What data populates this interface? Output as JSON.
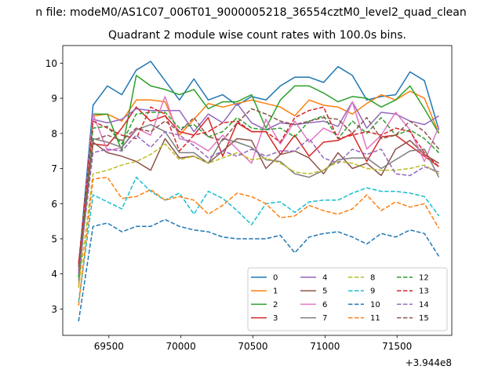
{
  "suptitle": "n file: modeM0/AS1C07_006T01_9000005218_36554cztM0_level2_quad_clean",
  "chart_data": {
    "type": "line",
    "title": "Quadrant 2 module wise count rates with 100.0s bins.",
    "xlabel": "",
    "ylabel": "",
    "x_offset_label": "+3.944e8",
    "x_offset": 394400000,
    "xlim": [
      69180,
      71880
    ],
    "ylim": [
      2.25,
      10.5
    ],
    "xticks": [
      69500,
      70000,
      70500,
      71000,
      71500
    ],
    "xtick_labels": [
      "69500",
      "70000",
      "70500",
      "71000",
      "71500"
    ],
    "yticks": [
      3,
      4,
      5,
      6,
      7,
      8,
      9,
      10
    ],
    "ytick_labels": [
      "3",
      "4",
      "5",
      "6",
      "7",
      "8",
      "9",
      "10"
    ],
    "grid": false,
    "legend_position": "lower-right",
    "x": [
      69290,
      69390,
      69490,
      69590,
      69690,
      69790,
      69890,
      69990,
      70090,
      70190,
      70290,
      70390,
      70490,
      70590,
      70690,
      70790,
      70890,
      70990,
      71090,
      71190,
      71290,
      71390,
      71490,
      71590,
      71690,
      71790
    ],
    "series": [
      {
        "name": "0",
        "color": "#1f77b4",
        "dash": "solid",
        "values": [
          4.2,
          8.8,
          9.35,
          9.1,
          9.8,
          10.05,
          9.5,
          8.95,
          9.55,
          8.95,
          9.1,
          8.8,
          9.05,
          8.95,
          9.35,
          9.6,
          9.6,
          9.45,
          9.9,
          9.65,
          8.95,
          9.05,
          9.1,
          9.75,
          9.5,
          8.1
        ]
      },
      {
        "name": "1",
        "color": "#ff7f0e",
        "dash": "solid",
        "values": [
          3.6,
          8.5,
          8.55,
          8.35,
          8.95,
          8.95,
          8.9,
          7.95,
          8.4,
          8.85,
          8.75,
          8.85,
          8.95,
          8.85,
          8.75,
          8.5,
          8.95,
          8.8,
          8.75,
          8.55,
          8.85,
          9.1,
          8.95,
          9.2,
          9.0,
          8.0
        ]
      },
      {
        "name": "2",
        "color": "#2ca02c",
        "dash": "solid",
        "values": [
          3.9,
          8.55,
          8.55,
          7.5,
          9.65,
          9.35,
          9.25,
          9.1,
          9.25,
          8.7,
          8.9,
          8.9,
          9.1,
          8.15,
          8.95,
          9.35,
          9.35,
          9.15,
          8.9,
          9.05,
          9.0,
          8.75,
          8.95,
          9.35,
          8.7,
          8.0
        ]
      },
      {
        "name": "3",
        "color": "#d62728",
        "dash": "solid",
        "values": [
          4.3,
          7.7,
          7.65,
          8.15,
          8.75,
          8.35,
          8.5,
          8.05,
          7.95,
          8.45,
          7.35,
          8.3,
          8.05,
          8.05,
          7.4,
          7.95,
          7.35,
          7.75,
          7.8,
          8.0,
          7.2,
          7.9,
          7.95,
          7.65,
          7.35,
          7.05
        ]
      },
      {
        "name": "4",
        "color": "#9467bd",
        "dash": "solid",
        "values": [
          4.0,
          8.4,
          8.3,
          8.4,
          8.7,
          8.65,
          8.65,
          8.65,
          8.05,
          8.55,
          8.3,
          8.85,
          8.3,
          8.1,
          8.3,
          8.25,
          8.3,
          8.35,
          8.2,
          8.9,
          8.15,
          8.6,
          8.55,
          8.35,
          8.25,
          8.5
        ]
      },
      {
        "name": "5",
        "color": "#8c564b",
        "dash": "solid",
        "values": [
          4.1,
          7.75,
          7.45,
          7.35,
          7.2,
          6.95,
          7.85,
          7.3,
          7.35,
          7.15,
          7.5,
          7.85,
          7.8,
          7.0,
          7.4,
          7.5,
          7.3,
          6.85,
          7.45,
          7.0,
          7.15,
          6.8,
          7.55,
          7.8,
          7.4,
          7.15
        ]
      },
      {
        "name": "6",
        "color": "#e377c2",
        "dash": "solid",
        "values": [
          4.0,
          8.55,
          7.5,
          7.6,
          8.15,
          7.95,
          9.05,
          7.85,
          7.75,
          7.5,
          7.95,
          7.55,
          7.15,
          8.4,
          7.7,
          8.35,
          7.75,
          8.15,
          7.95,
          8.9,
          7.55,
          7.95,
          8.6,
          8.1,
          7.2,
          8.2
        ]
      },
      {
        "name": "7",
        "color": "#7f7f7f",
        "dash": "solid",
        "values": [
          3.8,
          7.85,
          7.75,
          7.6,
          8.1,
          8.25,
          8.05,
          7.45,
          7.45,
          7.15,
          7.85,
          7.75,
          7.6,
          7.25,
          7.2,
          6.85,
          6.75,
          6.95,
          7.25,
          7.3,
          7.3,
          7.0,
          7.25,
          7.5,
          7.55,
          6.75
        ]
      },
      {
        "name": "8",
        "color": "#bcbd22",
        "dash": "dashed",
        "values": [
          3.6,
          6.85,
          6.95,
          7.1,
          7.2,
          7.4,
          7.7,
          7.25,
          7.35,
          7.15,
          7.3,
          7.45,
          7.25,
          7.3,
          7.15,
          6.9,
          6.85,
          6.95,
          7.2,
          7.15,
          7.0,
          6.95,
          6.95,
          7.0,
          7.1,
          6.85
        ]
      },
      {
        "name": "9",
        "color": "#17becf",
        "dash": "dashed",
        "values": [
          3.2,
          6.25,
          6.05,
          5.85,
          6.75,
          6.35,
          6.1,
          6.3,
          5.7,
          6.35,
          6.15,
          5.8,
          5.4,
          6.0,
          6.05,
          5.75,
          6.05,
          6.1,
          6.1,
          6.3,
          6.45,
          6.35,
          6.35,
          6.3,
          6.2,
          5.65
        ]
      },
      {
        "name": "10",
        "color": "#1f77b4",
        "dash": "dashed",
        "values": [
          2.65,
          5.35,
          5.45,
          5.2,
          5.35,
          5.35,
          5.55,
          5.35,
          5.25,
          5.2,
          5.05,
          5.0,
          5.0,
          5.0,
          5.1,
          4.6,
          5.05,
          5.15,
          5.2,
          5.05,
          4.85,
          5.15,
          5.05,
          5.25,
          5.15,
          4.5
        ]
      },
      {
        "name": "11",
        "color": "#ff7f0e",
        "dash": "dashed",
        "values": [
          3.1,
          6.7,
          6.75,
          6.15,
          6.2,
          6.4,
          6.1,
          6.2,
          6.1,
          5.7,
          5.95,
          6.3,
          6.2,
          6.0,
          5.6,
          5.65,
          5.95,
          5.8,
          5.7,
          5.85,
          6.25,
          5.8,
          6.05,
          5.9,
          6.0,
          5.3
        ]
      },
      {
        "name": "12",
        "color": "#2ca02c",
        "dash": "dashed",
        "values": [
          3.9,
          8.15,
          8.2,
          7.7,
          8.55,
          8.6,
          8.6,
          8.15,
          8.25,
          7.9,
          8.05,
          8.45,
          8.15,
          8.1,
          8.15,
          7.9,
          8.35,
          8.5,
          7.85,
          8.35,
          8.0,
          8.45,
          7.95,
          8.1,
          7.85,
          7.45
        ]
      },
      {
        "name": "13",
        "color": "#d62728",
        "dash": "dashed",
        "values": [
          4.3,
          8.35,
          8.15,
          7.95,
          7.85,
          8.75,
          8.55,
          7.5,
          7.95,
          8.05,
          8.3,
          8.35,
          8.05,
          8.05,
          7.75,
          8.45,
          8.65,
          8.75,
          7.85,
          7.95,
          8.05,
          7.95,
          8.15,
          8.05,
          7.45,
          7.05
        ]
      },
      {
        "name": "14",
        "color": "#9467bd",
        "dash": "dashed",
        "values": [
          4.0,
          7.45,
          7.55,
          7.5,
          7.95,
          7.6,
          8.05,
          7.95,
          7.65,
          7.3,
          7.5,
          7.35,
          7.55,
          7.35,
          7.5,
          7.5,
          7.85,
          7.3,
          7.15,
          7.55,
          7.4,
          7.55,
          6.85,
          6.8,
          7.05,
          6.9
        ]
      },
      {
        "name": "15",
        "color": "#8c564b",
        "dash": "dashed",
        "values": [
          4.2,
          7.8,
          7.95,
          7.8,
          8.15,
          8.05,
          8.35,
          8.05,
          8.45,
          7.9,
          7.8,
          8.3,
          8.7,
          8.55,
          8.35,
          8.25,
          8.35,
          8.45,
          8.4,
          8.0,
          8.45,
          7.85,
          7.95,
          8.35,
          8.05,
          7.55
        ]
      }
    ]
  }
}
